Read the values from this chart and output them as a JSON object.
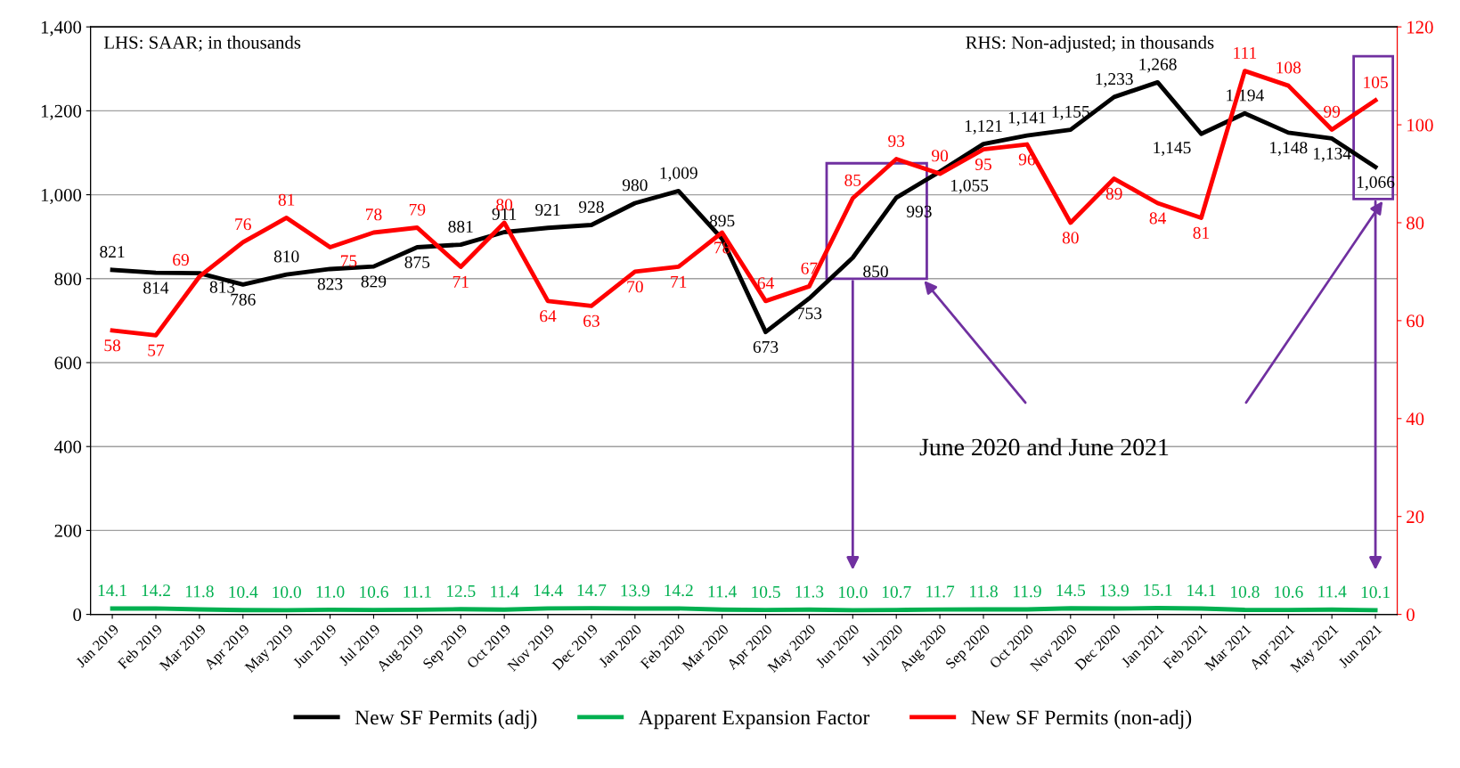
{
  "chart_data": {
    "type": "line",
    "categories": [
      "Jan 2019",
      "Feb 2019",
      "Mar 2019",
      "Apr 2019",
      "May 2019",
      "Jun 2019",
      "Jul 2019",
      "Aug 2019",
      "Sep 2019",
      "Oct 2019",
      "Nov 2019",
      "Dec 2019",
      "Jan 2020",
      "Feb 2020",
      "Mar 2020",
      "Apr 2020",
      "May 2020",
      "Jun 2020",
      "Jul 2020",
      "Aug 2020",
      "Sep 2020",
      "Oct 2020",
      "Nov 2020",
      "Dec 2020",
      "Jan 2021",
      "Feb 2021",
      "Mar 2021",
      "Apr 2021",
      "May 2021",
      "Jun 2021"
    ],
    "series": [
      {
        "name": "New SF Permits (adj)",
        "color": "#000000",
        "values": [
          821,
          814,
          813,
          786,
          810,
          823,
          829,
          875,
          881,
          911,
          921,
          928,
          980,
          1009,
          895,
          673,
          753,
          850,
          993,
          1055,
          1121,
          1141,
          1155,
          1233,
          1268,
          1145,
          1194,
          1148,
          1134,
          1066
        ],
        "value_labels": [
          "821",
          "814",
          "813",
          "786",
          "810",
          "823",
          "829",
          "875",
          "881",
          "911",
          "921",
          "928",
          "980",
          "1,009",
          "895",
          "673",
          "753",
          "850",
          "993",
          "1,055",
          "1,121",
          "1,141",
          "1,155",
          "1,233",
          "1,268",
          "1,145",
          "1,194",
          "1,148",
          "1,134",
          "1,066"
        ]
      },
      {
        "name": "Apparent Expansion Factor",
        "color": "#00b050",
        "values": [
          14.1,
          14.2,
          11.8,
          10.4,
          10.0,
          11.0,
          10.6,
          11.1,
          12.5,
          11.4,
          14.4,
          14.7,
          13.9,
          14.2,
          11.4,
          10.5,
          11.3,
          10.0,
          10.7,
          11.7,
          11.8,
          11.9,
          14.5,
          13.9,
          15.1,
          14.1,
          10.8,
          10.6,
          11.4,
          10.1
        ],
        "value_labels": [
          "14.1",
          "14.2",
          "11.8",
          "10.4",
          "10.0",
          "11.0",
          "10.6",
          "11.1",
          "12.5",
          "11.4",
          "14.4",
          "14.7",
          "13.9",
          "14.2",
          "11.4",
          "10.5",
          "11.3",
          "10.0",
          "10.7",
          "11.7",
          "11.8",
          "11.9",
          "14.5",
          "13.9",
          "15.1",
          "14.1",
          "10.8",
          "10.6",
          "11.4",
          "10.1"
        ]
      },
      {
        "name": "New SF Permits (non-adj)",
        "color": "#ff0000",
        "axis": "y2",
        "values": [
          58,
          57,
          69,
          76,
          81,
          75,
          78,
          79,
          71,
          80,
          64,
          63,
          70,
          71,
          78,
          64,
          67,
          85,
          93,
          90,
          95,
          96,
          80,
          89,
          84,
          81,
          111,
          108,
          99,
          105
        ],
        "value_labels": [
          "58",
          "57",
          "69",
          "76",
          "81",
          "75",
          "78",
          "79",
          "71",
          "80",
          "64",
          "63",
          "70",
          "71",
          "78",
          "64",
          "67",
          "85",
          "93",
          "90",
          "95",
          "96",
          "80",
          "89",
          "84",
          "81",
          "111",
          "108",
          "99",
          "105"
        ]
      }
    ],
    "ylim": [
      0,
      1400
    ],
    "yticks": [
      {
        "value": 0,
        "label": "0"
      },
      {
        "value": 200,
        "label": "200"
      },
      {
        "value": 400,
        "label": "400"
      },
      {
        "value": 600,
        "label": "600"
      },
      {
        "value": 800,
        "label": "800"
      },
      {
        "value": 1000,
        "label": "1,000"
      },
      {
        "value": 1200,
        "label": "1,200"
      },
      {
        "value": 1400,
        "label": "1,400"
      }
    ],
    "y2lim": [
      0,
      120
    ],
    "y2ticks": [
      0,
      20,
      40,
      60,
      80,
      100,
      120
    ],
    "grid": "y",
    "legend": "bottom",
    "annotations": [
      "LHS: SAAR; in thousands",
      "RHS: Non-adjusted; in thousands",
      "June 2020 and June 2021"
    ]
  }
}
